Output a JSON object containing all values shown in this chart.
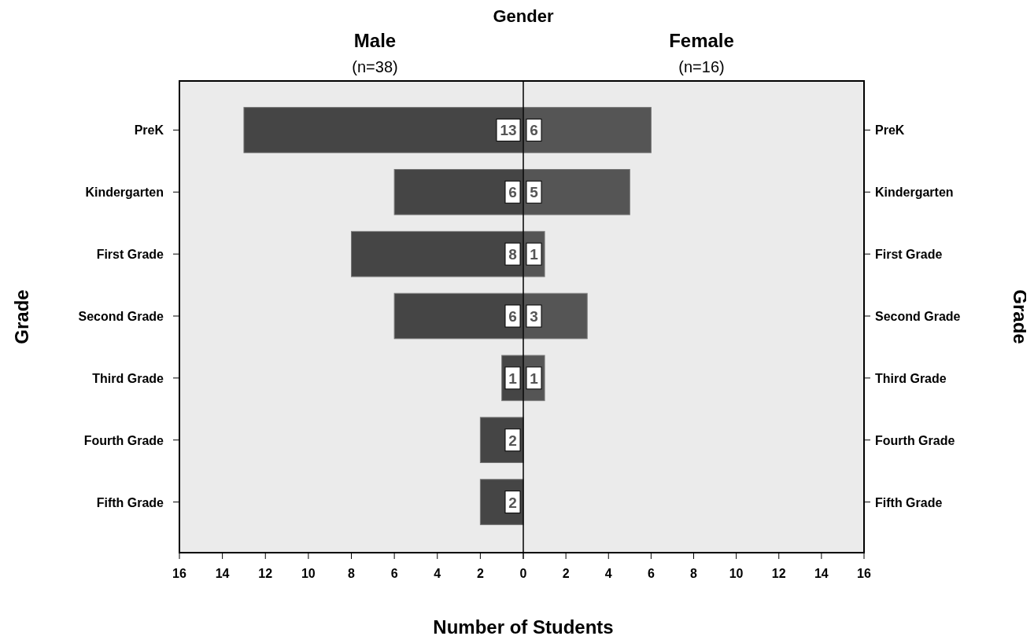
{
  "chart_data": [
    {
      "type": "bar",
      "orientation": "horizontal",
      "title": "Male",
      "subtitle": "(n=38)",
      "ylabel": "Grade",
      "xlabel": "Number of Students",
      "annotations": [
        "Gender"
      ],
      "categories": [
        "PreK",
        "Kindergarten",
        "First Grade",
        "Second Grade",
        "Third Grade",
        "Fourth Grade",
        "Fifth Grade"
      ],
      "values": [
        13,
        6,
        8,
        6,
        1,
        2,
        2
      ],
      "color": "#454545",
      "data_labels": true,
      "xlim": [
        16,
        0
      ],
      "xticks": [
        16,
        14,
        12,
        10,
        8,
        6,
        4,
        2,
        {
          "value": 0,
          "label": null
        }
      ]
    },
    {
      "type": "bar",
      "orientation": "horizontal",
      "title": "Female",
      "subtitle": "(n=16)",
      "ylabel": "Grade",
      "categories": [
        "PreK",
        "Kindergarten",
        "First Grade",
        "Second Grade",
        "Third Grade",
        "Fourth Grade",
        "Fifth Grade"
      ],
      "values": [
        6,
        5,
        1,
        3,
        1,
        0,
        0
      ],
      "value_labels": [
        "6",
        "5",
        "1",
        "3",
        "1",
        null,
        null
      ],
      "color": "#555555",
      "xlim": [
        0,
        16
      ],
      "xticks": [
        0,
        2,
        4,
        6,
        8,
        10,
        12,
        14,
        16
      ]
    }
  ]
}
